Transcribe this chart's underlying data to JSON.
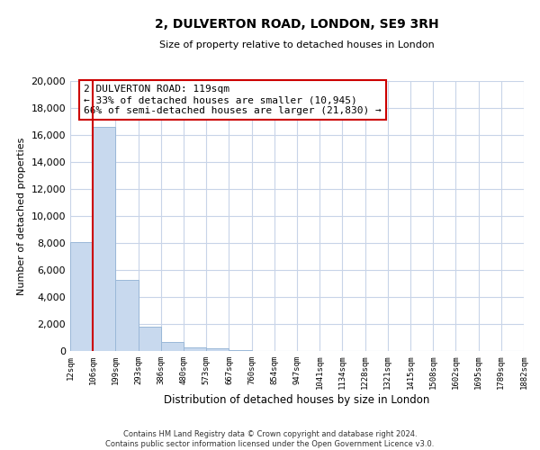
{
  "title": "2, DULVERTON ROAD, LONDON, SE9 3RH",
  "subtitle": "Size of property relative to detached houses in London",
  "xlabel": "Distribution of detached houses by size in London",
  "ylabel": "Number of detached properties",
  "bar_color": "#c8d9ee",
  "bar_edge_color": "#9ab8d8",
  "bin_labels": [
    "12sqm",
    "106sqm",
    "199sqm",
    "293sqm",
    "386sqm",
    "480sqm",
    "573sqm",
    "667sqm",
    "760sqm",
    "854sqm",
    "947sqm",
    "1041sqm",
    "1134sqm",
    "1228sqm",
    "1321sqm",
    "1415sqm",
    "1508sqm",
    "1602sqm",
    "1695sqm",
    "1789sqm",
    "1882sqm"
  ],
  "bar_heights": [
    8100,
    16600,
    5300,
    1800,
    700,
    300,
    200,
    100,
    0,
    0,
    0,
    0,
    0,
    0,
    0,
    0,
    0,
    0,
    0,
    0
  ],
  "ylim": [
    0,
    20000
  ],
  "yticks": [
    0,
    2000,
    4000,
    6000,
    8000,
    10000,
    12000,
    14000,
    16000,
    18000,
    20000
  ],
  "property_line_x": 1,
  "property_line_color": "#cc0000",
  "annotation_title": "2 DULVERTON ROAD: 119sqm",
  "annotation_line1": "← 33% of detached houses are smaller (10,945)",
  "annotation_line2": "66% of semi-detached houses are larger (21,830) →",
  "annotation_box_color": "#ffffff",
  "annotation_box_edge": "#cc0000",
  "footer_line1": "Contains HM Land Registry data © Crown copyright and database right 2024.",
  "footer_line2": "Contains public sector information licensed under the Open Government Licence v3.0.",
  "grid_color": "#c8d4e8",
  "background_color": "#ffffff"
}
